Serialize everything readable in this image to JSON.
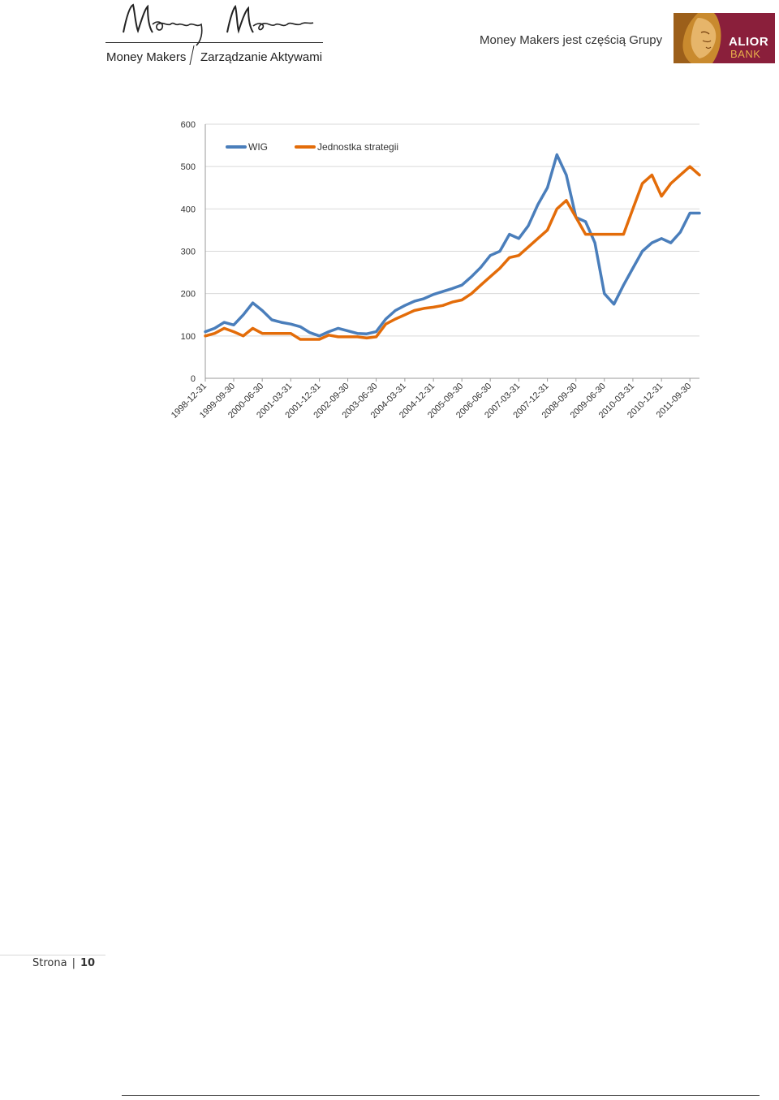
{
  "header": {
    "brand_name": "Money Makers",
    "brand_sub": "Zarządzanie Aktywami",
    "group_text": "Money Makers jest częścią Grupy",
    "alior_word1": "ALIOR",
    "alior_word2": "BANK",
    "colors": {
      "alior_bg": "#8a1f3b",
      "alior_gold": "#e8b04a"
    }
  },
  "chart_data": {
    "type": "line",
    "title": "",
    "xlabel": "",
    "ylabel": "",
    "ylim": [
      0,
      600
    ],
    "yticks": [
      0,
      100,
      200,
      300,
      400,
      500,
      600
    ],
    "grid": true,
    "legend_position": "top-left",
    "x_tick_labels": [
      "1998-12-31",
      "1999-09-30",
      "2000-06-30",
      "2001-03-31",
      "2001-12-31",
      "2002-09-30",
      "2003-06-30",
      "2004-03-31",
      "2004-12-31",
      "2005-09-30",
      "2006-06-30",
      "2007-03-31",
      "2007-12-31",
      "2008-09-30",
      "2009-06-30",
      "2010-03-31",
      "2010-12-31",
      "2011-09-30"
    ],
    "x": [
      "1998-12-31",
      "1999-03-31",
      "1999-06-30",
      "1999-09-30",
      "1999-12-31",
      "2000-03-31",
      "2000-06-30",
      "2000-09-30",
      "2000-12-31",
      "2001-03-31",
      "2001-06-30",
      "2001-09-30",
      "2001-12-31",
      "2002-03-31",
      "2002-06-30",
      "2002-09-30",
      "2002-12-31",
      "2003-03-31",
      "2003-06-30",
      "2003-09-30",
      "2003-12-31",
      "2004-03-31",
      "2004-06-30",
      "2004-09-30",
      "2004-12-31",
      "2005-03-31",
      "2005-06-30",
      "2005-09-30",
      "2005-12-31",
      "2006-03-31",
      "2006-06-30",
      "2006-09-30",
      "2006-12-31",
      "2007-03-31",
      "2007-06-30",
      "2007-09-30",
      "2007-12-31",
      "2008-03-31",
      "2008-06-30",
      "2008-09-30",
      "2008-12-31",
      "2009-03-31",
      "2009-06-30",
      "2009-09-30",
      "2009-12-31",
      "2010-03-31",
      "2010-06-30",
      "2010-09-30",
      "2010-12-31",
      "2011-03-31",
      "2011-06-30",
      "2011-09-30",
      "2011-12-31"
    ],
    "series": [
      {
        "name": "WIG",
        "color": "#4a7ebb",
        "values": [
          110,
          118,
          132,
          126,
          150,
          178,
          160,
          138,
          132,
          128,
          122,
          108,
          100,
          110,
          118,
          112,
          106,
          105,
          110,
          140,
          160,
          172,
          182,
          188,
          198,
          205,
          212,
          220,
          240,
          262,
          290,
          300,
          340,
          330,
          360,
          410,
          450,
          528,
          480,
          380,
          370,
          320,
          200,
          175,
          220,
          260,
          300,
          320,
          330,
          320,
          345,
          390,
          390
        ]
      },
      {
        "name": "Jednostka strategii",
        "color": "#e36c09",
        "values": [
          100,
          106,
          118,
          110,
          100,
          118,
          106,
          106,
          106,
          106,
          92,
          92,
          92,
          102,
          98,
          98,
          98,
          95,
          98,
          128,
          140,
          150,
          160,
          165,
          168,
          172,
          180,
          185,
          200,
          220,
          240,
          260,
          285,
          290,
          310,
          330,
          350,
          400,
          420,
          380,
          340,
          340,
          340,
          340,
          340,
          400,
          460,
          480,
          430,
          460,
          480,
          500,
          480
        ]
      }
    ]
  },
  "footer": {
    "page_label": "Strona",
    "separator": "|",
    "page_number": "10"
  }
}
